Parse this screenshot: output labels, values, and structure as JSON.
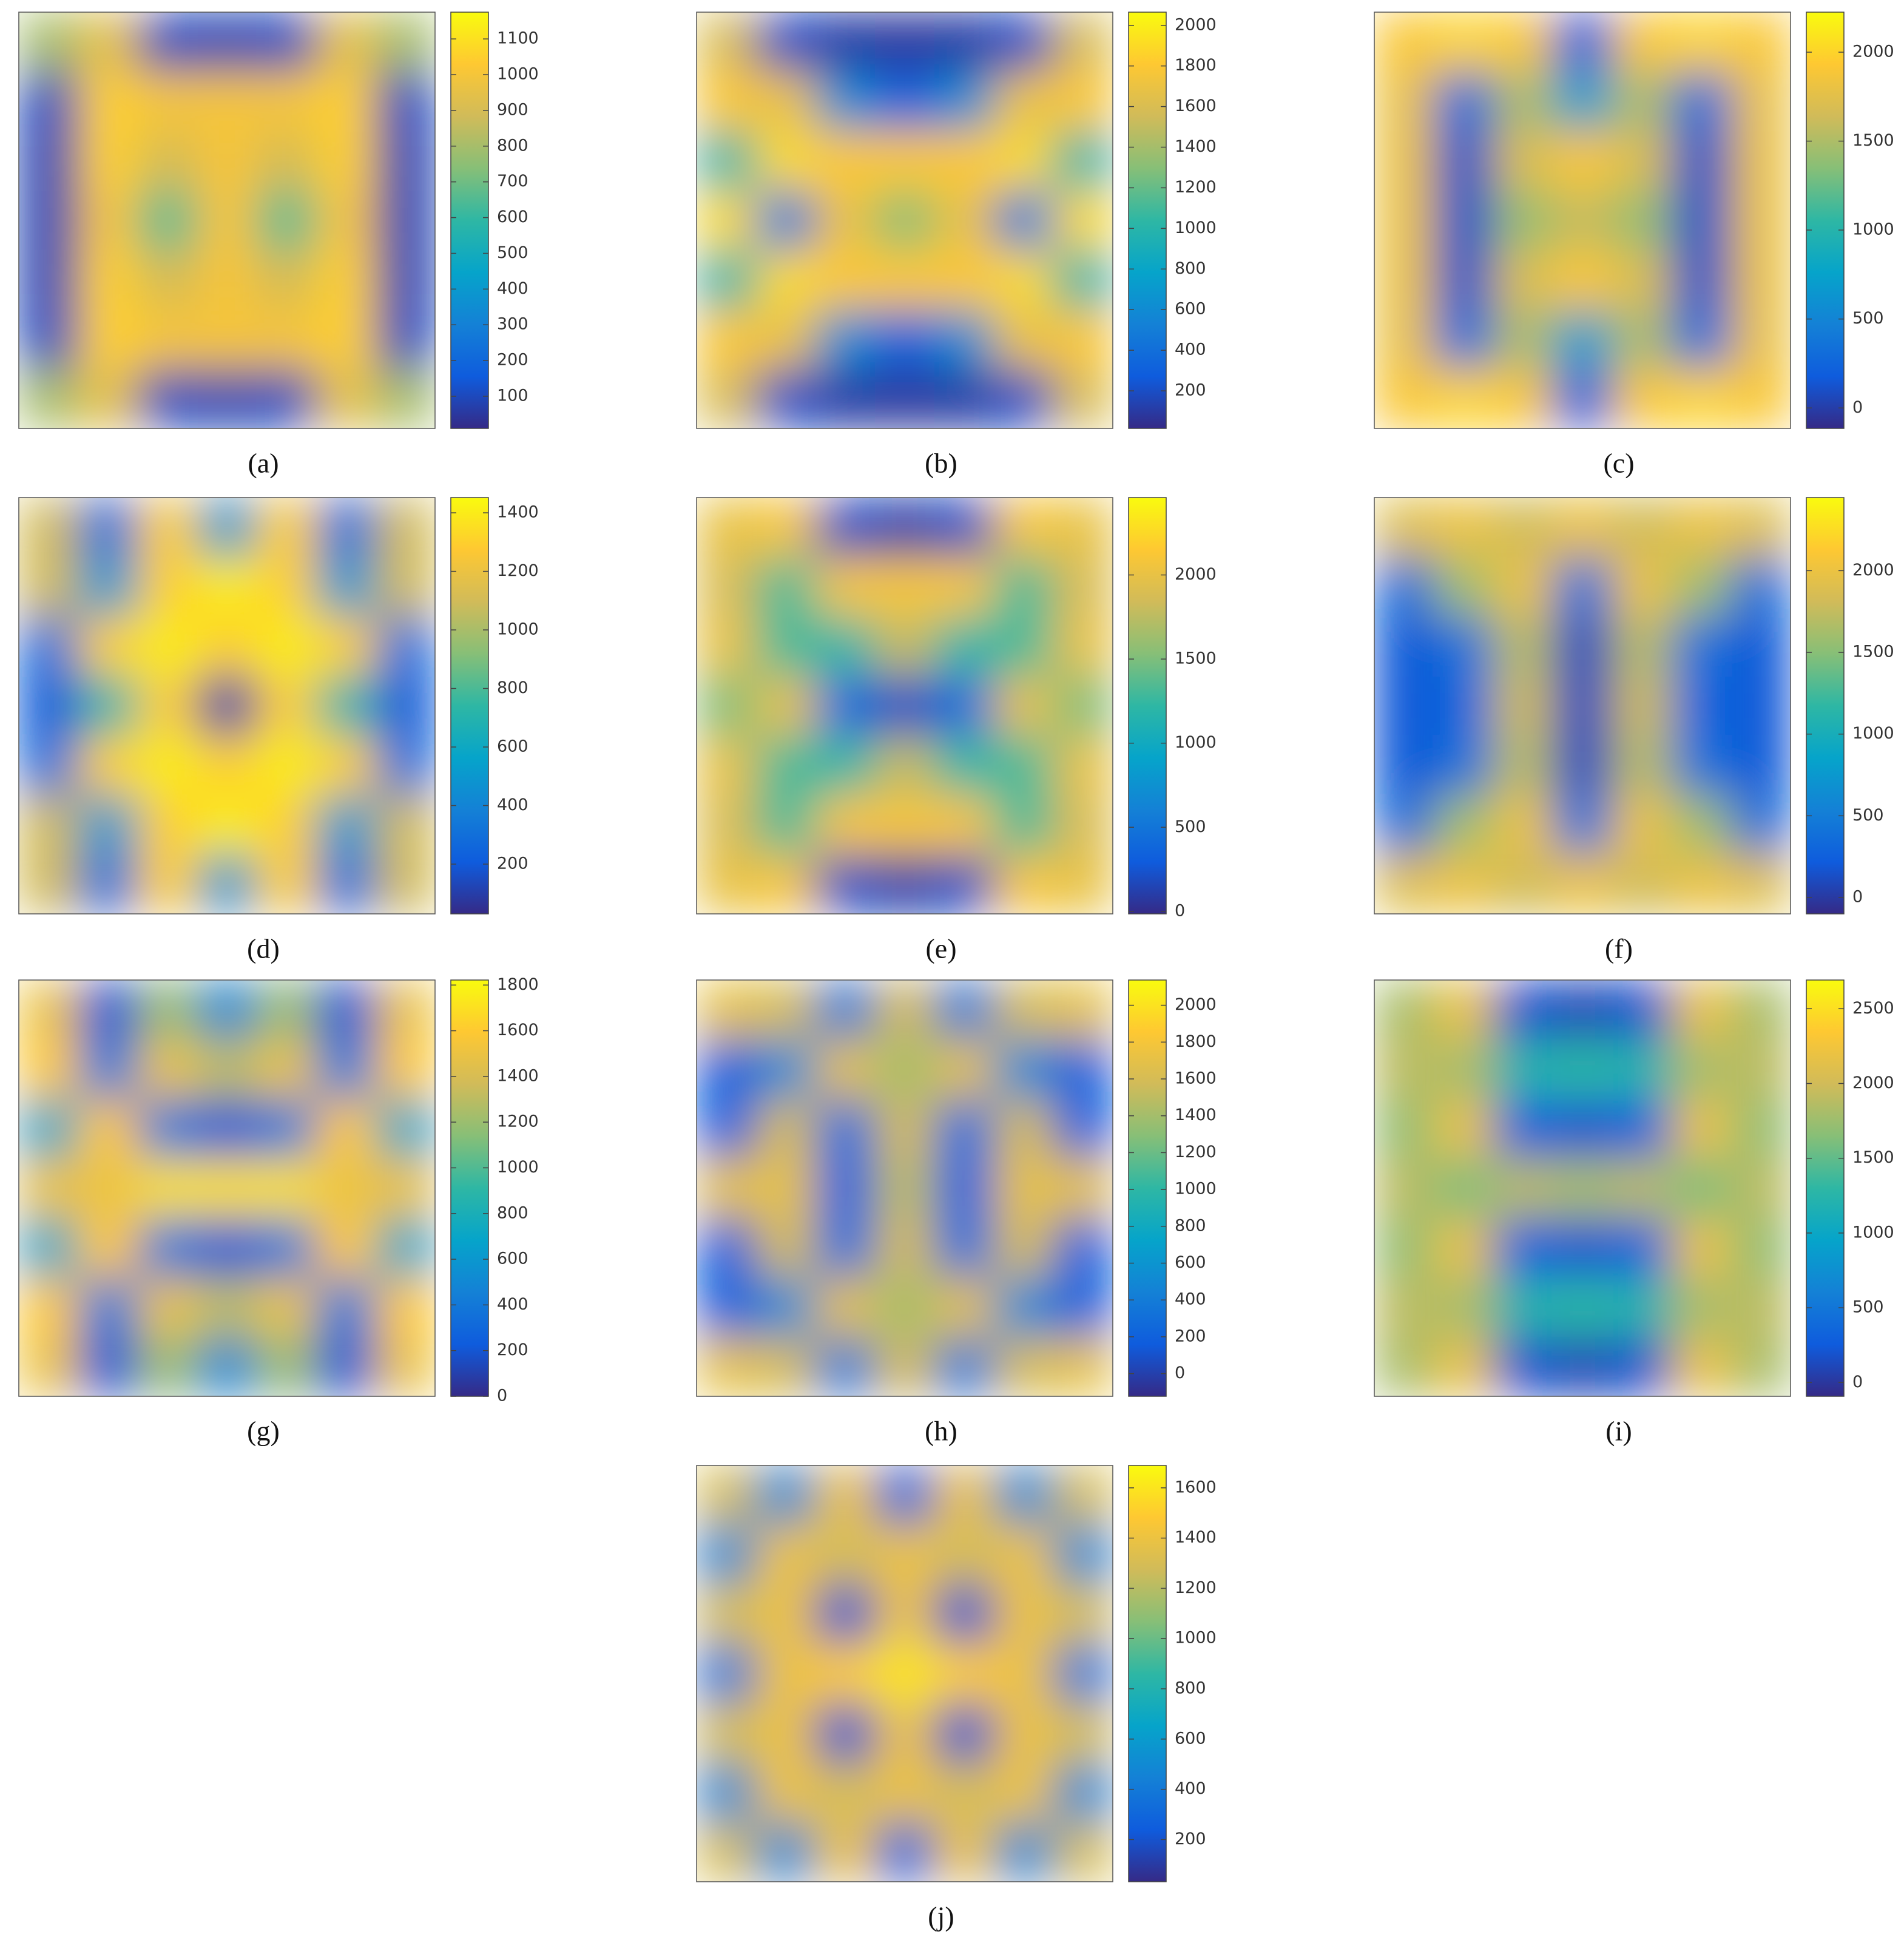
{
  "chart_data": [
    {
      "type": "heatmap",
      "caption": "(a)",
      "clim": [
        10,
        1175
      ],
      "cticks": [
        100,
        200,
        300,
        400,
        500,
        600,
        700,
        800,
        900,
        1000,
        1100
      ],
      "z": [
        [
          800,
          950,
          100,
          80,
          100,
          950,
          800
        ],
        [
          100,
          1050,
          1000,
          1000,
          1000,
          1050,
          100
        ],
        [
          80,
          1050,
          900,
          1000,
          900,
          1050,
          80
        ],
        [
          80,
          1000,
          650,
          1000,
          650,
          1000,
          80
        ],
        [
          80,
          1050,
          900,
          1000,
          900,
          1050,
          80
        ],
        [
          100,
          1050,
          1000,
          1000,
          1000,
          1050,
          100
        ],
        [
          800,
          950,
          100,
          80,
          100,
          950,
          800
        ]
      ]
    },
    {
      "type": "heatmap",
      "caption": "(b)",
      "clim": [
        15,
        2065
      ],
      "cticks": [
        200,
        400,
        600,
        800,
        1000,
        1200,
        1400,
        1600,
        1800,
        2000
      ],
      "z": [
        [
          1600,
          200,
          100,
          80,
          100,
          200,
          1600
        ],
        [
          1800,
          1700,
          600,
          300,
          600,
          1700,
          1800
        ],
        [
          1000,
          1900,
          1800,
          1800,
          1800,
          1900,
          1000
        ],
        [
          1900,
          500,
          1700,
          1300,
          1700,
          500,
          1900
        ],
        [
          1000,
          1900,
          1800,
          1800,
          1800,
          1900,
          1000
        ],
        [
          1800,
          1700,
          600,
          300,
          600,
          1700,
          1800
        ],
        [
          1600,
          200,
          100,
          80,
          100,
          200,
          1600
        ]
      ]
    },
    {
      "type": "heatmap",
      "caption": "(c)",
      "clim": [
        -115,
        2225
      ],
      "cticks": [
        0,
        500,
        1000,
        1500,
        2000
      ],
      "z": [
        [
          1900,
          2000,
          1900,
          200,
          1900,
          2000,
          1900
        ],
        [
          1800,
          300,
          1500,
          700,
          1500,
          300,
          1800
        ],
        [
          1800,
          100,
          1700,
          1900,
          1700,
          100,
          1800
        ],
        [
          1800,
          100,
          1400,
          1600,
          1400,
          100,
          1800
        ],
        [
          1800,
          100,
          1700,
          1900,
          1700,
          100,
          1800
        ],
        [
          1800,
          300,
          1500,
          700,
          1500,
          300,
          1800
        ],
        [
          1900,
          2000,
          1900,
          200,
          1900,
          2000,
          1900
        ]
      ]
    },
    {
      "type": "heatmap",
      "caption": "(d)",
      "clim": [
        30,
        1452
      ],
      "cticks": [
        200,
        400,
        600,
        800,
        1000,
        1200,
        1400
      ],
      "z": [
        [
          1100,
          300,
          1300,
          500,
          1300,
          300,
          1100
        ],
        [
          1100,
          500,
          1300,
          1400,
          1300,
          500,
          1100
        ],
        [
          300,
          1300,
          1400,
          1300,
          1400,
          1300,
          300
        ],
        [
          200,
          700,
          1300,
          100,
          1300,
          700,
          200
        ],
        [
          300,
          1300,
          1400,
          1300,
          1400,
          1300,
          300
        ],
        [
          1100,
          500,
          1300,
          1400,
          1300,
          500,
          1100
        ],
        [
          1100,
          300,
          1300,
          500,
          1300,
          300,
          1100
        ]
      ]
    },
    {
      "type": "heatmap",
      "caption": "(e)",
      "clim": [
        -15,
        2460
      ],
      "cticks": [
        0,
        500,
        1000,
        1500,
        2000
      ],
      "z": [
        [
          2000,
          2100,
          200,
          100,
          200,
          2100,
          2000
        ],
        [
          1900,
          1300,
          2100,
          2100,
          2100,
          1300,
          1900
        ],
        [
          2000,
          1300,
          1200,
          1800,
          1200,
          1300,
          2000
        ],
        [
          1500,
          2000,
          400,
          200,
          400,
          2000,
          1500
        ],
        [
          2000,
          1300,
          1200,
          1800,
          1200,
          1300,
          2000
        ],
        [
          1900,
          1300,
          2100,
          2100,
          2100,
          1300,
          1900
        ],
        [
          2000,
          2100,
          200,
          100,
          200,
          2100,
          2000
        ]
      ]
    },
    {
      "type": "heatmap",
      "caption": "(f)",
      "clim": [
        -100,
        2447
      ],
      "cticks": [
        0,
        500,
        1000,
        1500,
        2000
      ],
      "z": [
        [
          1900,
          2000,
          1800,
          2000,
          1800,
          2000,
          1900
        ],
        [
          400,
          1600,
          2000,
          400,
          2000,
          1600,
          400
        ],
        [
          200,
          400,
          1700,
          100,
          1700,
          400,
          200
        ],
        [
          200,
          300,
          1800,
          100,
          1800,
          300,
          200
        ],
        [
          200,
          400,
          1700,
          100,
          1700,
          400,
          200
        ],
        [
          400,
          1600,
          2000,
          400,
          2000,
          1600,
          400
        ],
        [
          1900,
          2000,
          1800,
          2000,
          1800,
          2000,
          1900
        ]
      ]
    },
    {
      "type": "heatmap",
      "caption": "(g)",
      "clim": [
        0,
        1822
      ],
      "cticks": [
        0,
        200,
        400,
        600,
        800,
        1000,
        1200,
        1400,
        1600,
        1800
      ],
      "z": [
        [
          1500,
          200,
          1200,
          500,
          1200,
          200,
          1500
        ],
        [
          1600,
          400,
          1500,
          1300,
          1500,
          400,
          1600
        ],
        [
          700,
          1600,
          400,
          200,
          400,
          1600,
          700
        ],
        [
          1500,
          1500,
          1700,
          1700,
          1700,
          1500,
          1500
        ],
        [
          700,
          1600,
          400,
          200,
          400,
          1600,
          700
        ],
        [
          1600,
          400,
          1500,
          1300,
          1500,
          400,
          1600
        ],
        [
          1500,
          200,
          1200,
          500,
          1200,
          200,
          1500
        ]
      ]
    },
    {
      "type": "heatmap",
      "caption": "(h)",
      "clim": [
        -123,
        2137
      ],
      "cticks": [
        0,
        200,
        400,
        600,
        800,
        1000,
        1200,
        1400,
        1600,
        1800,
        2000
      ],
      "z": [
        [
          1700,
          1600,
          400,
          1600,
          400,
          1600,
          1700
        ],
        [
          200,
          500,
          1700,
          1400,
          1700,
          500,
          200
        ],
        [
          200,
          1600,
          300,
          1600,
          300,
          1600,
          200
        ],
        [
          1700,
          1700,
          200,
          1500,
          200,
          1700,
          1700
        ],
        [
          200,
          1600,
          300,
          1600,
          300,
          1600,
          200
        ],
        [
          200,
          500,
          1700,
          1400,
          1700,
          500,
          200
        ],
        [
          1700,
          1600,
          400,
          1600,
          400,
          1600,
          1700
        ]
      ]
    },
    {
      "type": "heatmap",
      "caption": "(i)",
      "clim": [
        -92,
        2692
      ],
      "cticks": [
        0,
        500,
        1000,
        1500,
        2000,
        2500
      ],
      "z": [
        [
          1800,
          2200,
          200,
          100,
          200,
          2200,
          1800
        ],
        [
          1900,
          1800,
          1200,
          1300,
          1200,
          1800,
          1900
        ],
        [
          1700,
          2200,
          300,
          200,
          300,
          2200,
          1700
        ],
        [
          1900,
          1600,
          1900,
          1800,
          1900,
          1600,
          1900
        ],
        [
          1700,
          2200,
          300,
          200,
          300,
          2200,
          1700
        ],
        [
          1900,
          1800,
          1200,
          1300,
          1200,
          1800,
          1900
        ],
        [
          1800,
          2200,
          200,
          100,
          200,
          2200,
          1800
        ]
      ]
    },
    {
      "type": "heatmap",
      "caption": "(j)",
      "clim": [
        32,
        1689
      ],
      "cticks": [
        200,
        400,
        600,
        800,
        1000,
        1200,
        1400,
        1600
      ],
      "z": [
        [
          1300,
          500,
          1400,
          300,
          1400,
          500,
          1300
        ],
        [
          500,
          1400,
          1300,
          1400,
          1300,
          1400,
          500
        ],
        [
          1300,
          1400,
          200,
          1400,
          200,
          1400,
          1300
        ],
        [
          400,
          1400,
          1500,
          1600,
          1500,
          1400,
          400
        ],
        [
          1300,
          1400,
          200,
          1400,
          200,
          1400,
          1300
        ],
        [
          500,
          1400,
          1300,
          1400,
          1300,
          1400,
          500
        ],
        [
          1300,
          500,
          1400,
          300,
          1400,
          500,
          1300
        ]
      ]
    }
  ]
}
